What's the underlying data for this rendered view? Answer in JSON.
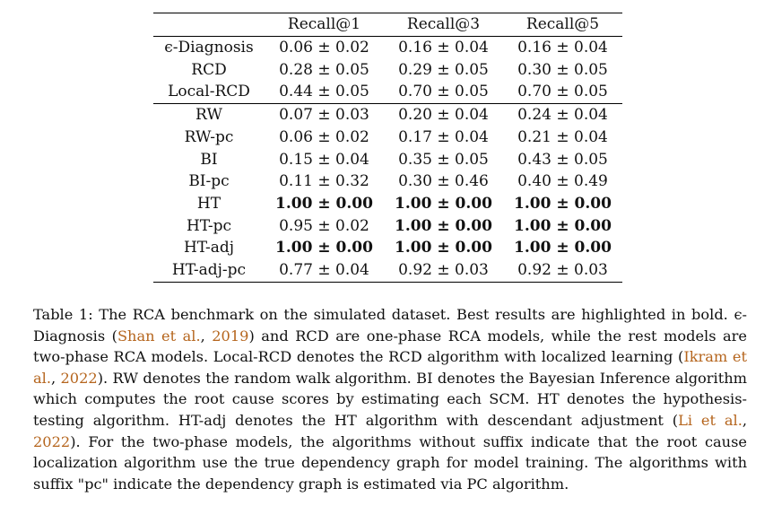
{
  "table": {
    "columns": [
      "",
      "Recall@1",
      "Recall@3",
      "Recall@5"
    ],
    "groups": [
      {
        "rows": [
          {
            "model": "ϵ-Diagnosis",
            "cells": [
              {
                "text": "0.06 ± 0.02",
                "bold": false
              },
              {
                "text": "0.16 ± 0.04",
                "bold": false
              },
              {
                "text": "0.16 ± 0.04",
                "bold": false
              }
            ]
          },
          {
            "model": "RCD",
            "cells": [
              {
                "text": "0.28 ± 0.05",
                "bold": false
              },
              {
                "text": "0.29 ± 0.05",
                "bold": false
              },
              {
                "text": "0.30 ± 0.05",
                "bold": false
              }
            ]
          },
          {
            "model": "Local-RCD",
            "cells": [
              {
                "text": "0.44 ± 0.05",
                "bold": false
              },
              {
                "text": "0.70 ± 0.05",
                "bold": false
              },
              {
                "text": "0.70 ± 0.05",
                "bold": false
              }
            ]
          }
        ]
      },
      {
        "rows": [
          {
            "model": "RW",
            "cells": [
              {
                "text": "0.07 ± 0.03",
                "bold": false
              },
              {
                "text": "0.20 ± 0.04",
                "bold": false
              },
              {
                "text": "0.24 ± 0.04",
                "bold": false
              }
            ]
          },
          {
            "model": "RW-pc",
            "cells": [
              {
                "text": "0.06 ± 0.02",
                "bold": false
              },
              {
                "text": "0.17 ± 0.04",
                "bold": false
              },
              {
                "text": "0.21 ± 0.04",
                "bold": false
              }
            ]
          },
          {
            "model": "BI",
            "cells": [
              {
                "text": "0.15 ± 0.04",
                "bold": false
              },
              {
                "text": "0.35 ± 0.05",
                "bold": false
              },
              {
                "text": "0.43 ± 0.05",
                "bold": false
              }
            ]
          },
          {
            "model": "BI-pc",
            "cells": [
              {
                "text": "0.11 ± 0.32",
                "bold": false
              },
              {
                "text": "0.30 ± 0.46",
                "bold": false
              },
              {
                "text": "0.40 ± 0.49",
                "bold": false
              }
            ]
          },
          {
            "model": "HT",
            "cells": [
              {
                "text": "1.00 ± 0.00",
                "bold": true
              },
              {
                "text": "1.00 ± 0.00",
                "bold": true
              },
              {
                "text": "1.00 ± 0.00",
                "bold": true
              }
            ]
          },
          {
            "model": "HT-pc",
            "cells": [
              {
                "text": "0.95 ± 0.02",
                "bold": false
              },
              {
                "text": "1.00 ± 0.00",
                "bold": true
              },
              {
                "text": "1.00 ± 0.00",
                "bold": true
              }
            ]
          },
          {
            "model": "HT-adj",
            "cells": [
              {
                "text": "1.00 ± 0.00",
                "bold": true
              },
              {
                "text": "1.00 ± 0.00",
                "bold": true
              },
              {
                "text": "1.00 ± 0.00",
                "bold": true
              }
            ]
          },
          {
            "model": "HT-adj-pc",
            "cells": [
              {
                "text": "0.77 ± 0.04",
                "bold": false
              },
              {
                "text": "0.92 ± 0.03",
                "bold": false
              },
              {
                "text": "0.92 ± 0.03",
                "bold": false
              }
            ]
          }
        ]
      }
    ]
  },
  "caption": {
    "segments": [
      {
        "text": "Table 1: The RCA benchmark on the simulated dataset. Best results are highlighted in bold. ϵ-Diagnosis (",
        "cite": false
      },
      {
        "text": "Shan et al.",
        "cite": true
      },
      {
        "text": ", ",
        "cite": false
      },
      {
        "text": "2019",
        "cite": true
      },
      {
        "text": ") and RCD are one-phase RCA models, while the rest models are two-phase RCA models. Local-RCD denotes the RCD algorithm with localized learning (",
        "cite": false
      },
      {
        "text": "Ikram et al.",
        "cite": true
      },
      {
        "text": ", ",
        "cite": false
      },
      {
        "text": "2022",
        "cite": true
      },
      {
        "text": "). RW denotes the random walk algorithm. BI denotes the Bayesian Inference algorithm which computes the root cause scores by estimating each SCM. HT denotes the hypothesis-testing algorithm. HT-adj denotes the HT algorithm with descendant adjustment (",
        "cite": false
      },
      {
        "text": "Li et al.",
        "cite": true
      },
      {
        "text": ", ",
        "cite": false
      },
      {
        "text": "2022",
        "cite": true
      },
      {
        "text": "). For the two-phase models, the algorithms without suffix indicate that the root cause localization algorithm use the true dependency graph for model training. The algorithms with suffix \"pc\" indicate the dependency graph is estimated via PC algorithm.",
        "cite": false
      }
    ],
    "cite_color": "#b5651d"
  }
}
